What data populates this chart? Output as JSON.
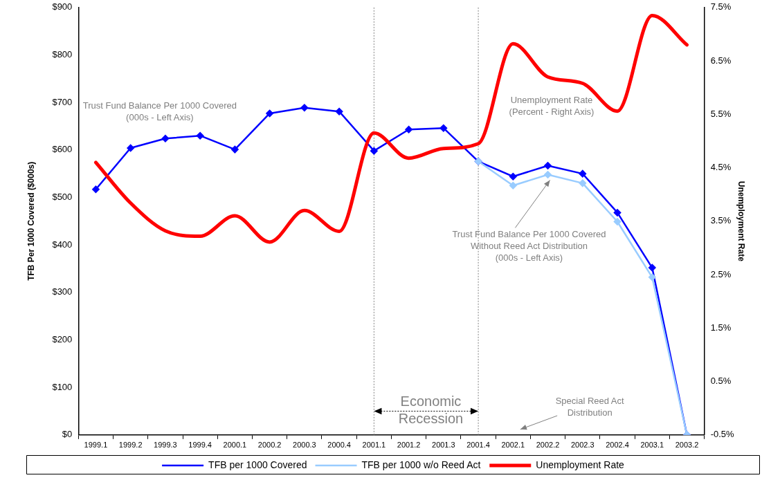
{
  "chart_data": {
    "type": "line",
    "ylabel": "TFB Per 1000 Covered ($000s)",
    "y2label": "Unemployment Rate",
    "categories": [
      "1999.1",
      "1999.2",
      "1999.3",
      "1999.4",
      "2000.1",
      "2000.2",
      "2000.3",
      "2000.4",
      "2001.1",
      "2001.2",
      "2001.3",
      "2001.4",
      "2002.1",
      "2002.2",
      "2002.3",
      "2002.4",
      "2003.1",
      "2003.2"
    ],
    "series": [
      {
        "name": "TFB per 1000 Covered",
        "color": "#0000ff",
        "marker": "diamond",
        "values": [
          517,
          604,
          624,
          630,
          601,
          677,
          689,
          681,
          598,
          643,
          646,
          576,
          544,
          567,
          550,
          468,
          352,
          0
        ]
      },
      {
        "name": "TFB per 1000 w/o Reed Act",
        "color": "#99ccff",
        "marker": "diamond",
        "values": [
          null,
          null,
          null,
          null,
          null,
          null,
          null,
          null,
          null,
          null,
          null,
          576,
          525,
          548,
          530,
          449,
          332,
          0
        ]
      },
      {
        "name": "Unemployment Rate",
        "color": "#ff0000",
        "marker": "none",
        "axis": "y2",
        "values": [
          4.6,
          3.84,
          3.32,
          3.22,
          3.6,
          3.11,
          3.7,
          3.31,
          5.15,
          4.68,
          4.86,
          4.95,
          6.82,
          6.2,
          6.08,
          5.56,
          7.35,
          6.8
        ]
      }
    ],
    "ylim": [
      0,
      900
    ],
    "yticks": [
      {
        "value": 0,
        "label": "$0"
      },
      {
        "value": 100,
        "label": "$100"
      },
      {
        "value": 200,
        "label": "$200"
      },
      {
        "value": 300,
        "label": "$300"
      },
      {
        "value": 400,
        "label": "$400"
      },
      {
        "value": 500,
        "label": "$500"
      },
      {
        "value": 600,
        "label": "$600"
      },
      {
        "value": 700,
        "label": "$700"
      },
      {
        "value": 800,
        "label": "$800"
      },
      {
        "value": 900,
        "label": "$900"
      }
    ],
    "y2lim": [
      -0.5,
      7.5
    ],
    "y2ticks": [
      {
        "value": -0.5,
        "label": "-0.5%"
      },
      {
        "value": 0.5,
        "label": "0.5%"
      },
      {
        "value": 1.5,
        "label": "1.5%"
      },
      {
        "value": 2.5,
        "label": "2.5%"
      },
      {
        "value": 3.5,
        "label": "3.5%"
      },
      {
        "value": 4.5,
        "label": "4.5%"
      },
      {
        "value": 5.5,
        "label": "5.5%"
      },
      {
        "value": 6.5,
        "label": "6.5%"
      },
      {
        "value": 7.5,
        "label": "7.5%"
      }
    ],
    "ref_lines": [
      {
        "axis": "x",
        "value": "2001.1",
        "color": "#808080",
        "line_style": "dotted"
      },
      {
        "axis": "x",
        "value": "2001.4",
        "color": "#808080",
        "line_style": "dotted"
      }
    ],
    "annotations": [
      "Trust Fund Balance Per 1000 Covered\n(000s - Left Axis)",
      "Unemployment Rate\n(Percent - Right Axis)",
      {
        "text": "Trust Fund Balance Per 1000 Covered\nWithout Reed Act Distribution\n(000s - Left Axis)",
        "x": "2002.2",
        "y": 548
      },
      "Special Reed Act\nDistribution",
      {
        "text": "Economic\nRecession",
        "x": "2001.1",
        "y": 50
      }
    ],
    "grid": false,
    "legend": "bottom",
    "line_style": "solid"
  }
}
